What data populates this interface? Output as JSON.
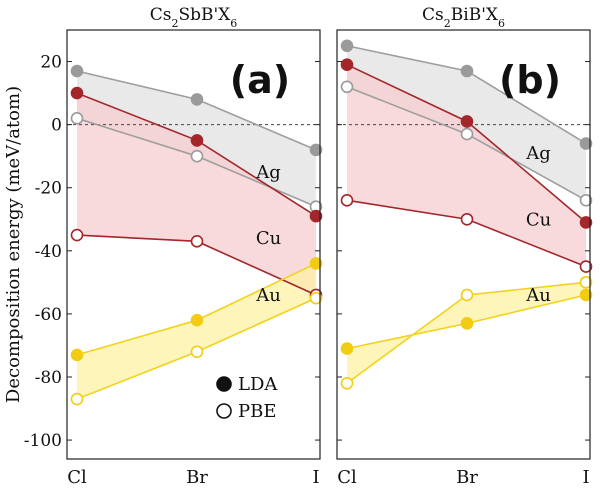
{
  "chart_data": [
    {
      "type": "line",
      "title": "Cs2SbB'X6",
      "title_parts": {
        "pre": "Cs",
        "sub1": "2",
        "mid": "SbB'X",
        "sub2": "6"
      },
      "panel_label": "(a)",
      "ylabel": "Decomposition energy (meV/atom)",
      "xlabel": "",
      "categories": [
        "Cl",
        "Br",
        "I"
      ],
      "ylim": [
        -106,
        30
      ],
      "yticks": [
        20,
        0,
        -20,
        -40,
        -60,
        -80,
        -100
      ],
      "zero_line": true,
      "series": [
        {
          "metal": "Ag",
          "method": "LDA",
          "values": [
            17,
            8,
            -8
          ]
        },
        {
          "metal": "Ag",
          "method": "PBE",
          "values": [
            2,
            -10,
            -26
          ]
        },
        {
          "metal": "Cu",
          "method": "LDA",
          "values": [
            10,
            -5,
            -29
          ]
        },
        {
          "metal": "Cu",
          "method": "PBE",
          "values": [
            -35,
            -37,
            -54
          ]
        },
        {
          "metal": "Au",
          "method": "LDA",
          "values": [
            -73,
            -62,
            -44
          ]
        },
        {
          "metal": "Au",
          "method": "PBE",
          "values": [
            -87,
            -72,
            -55
          ]
        }
      ],
      "annotations": [
        {
          "text": "Ag",
          "x": "Br-I",
          "y": -15
        },
        {
          "text": "Cu",
          "x": "Br-I",
          "y": -36
        },
        {
          "text": "Au",
          "x": "Br-I",
          "y": -54
        }
      ],
      "legend": {
        "placement": "bottom-right",
        "entries": [
          "LDA",
          "PBE"
        ]
      }
    },
    {
      "type": "line",
      "title": "Cs2BiB'X6",
      "title_parts": {
        "pre": "Cs",
        "sub1": "2",
        "mid": "BiB'X",
        "sub2": "6"
      },
      "panel_label": "(b)",
      "xlabel": "",
      "categories": [
        "Cl",
        "Br",
        "I"
      ],
      "ylim": [
        -106,
        30
      ],
      "zero_line": true,
      "series": [
        {
          "metal": "Ag",
          "method": "LDA",
          "values": [
            25,
            17,
            -6
          ]
        },
        {
          "metal": "Ag",
          "method": "PBE",
          "values": [
            12,
            -3,
            -24
          ]
        },
        {
          "metal": "Cu",
          "method": "LDA",
          "values": [
            19,
            1,
            -31
          ]
        },
        {
          "metal": "Cu",
          "method": "PBE",
          "values": [
            -24,
            -30,
            -45
          ]
        },
        {
          "metal": "Au",
          "method": "LDA",
          "values": [
            -71,
            -63,
            -54
          ]
        },
        {
          "metal": "Au",
          "method": "PBE",
          "values": [
            -82,
            -54,
            -50
          ]
        }
      ],
      "annotations": [
        {
          "text": "Ag",
          "x": "Br-I",
          "y": -9
        },
        {
          "text": "Cu",
          "x": "Br-I",
          "y": -30
        },
        {
          "text": "Au",
          "x": "Br-I",
          "y": -54
        }
      ]
    }
  ],
  "colors": {
    "Ag": {
      "line": "#9e9e9e",
      "marker": "#9a9a9a",
      "fill": "#e2e2e2"
    },
    "Cu": {
      "line": "#a3262b",
      "marker": "#a3262b",
      "fill": "#f6cdd0"
    },
    "Au": {
      "line": "#f2d21b",
      "marker": "#f2cc12",
      "fill": "#fdf1a4"
    },
    "axis": "#222222"
  }
}
